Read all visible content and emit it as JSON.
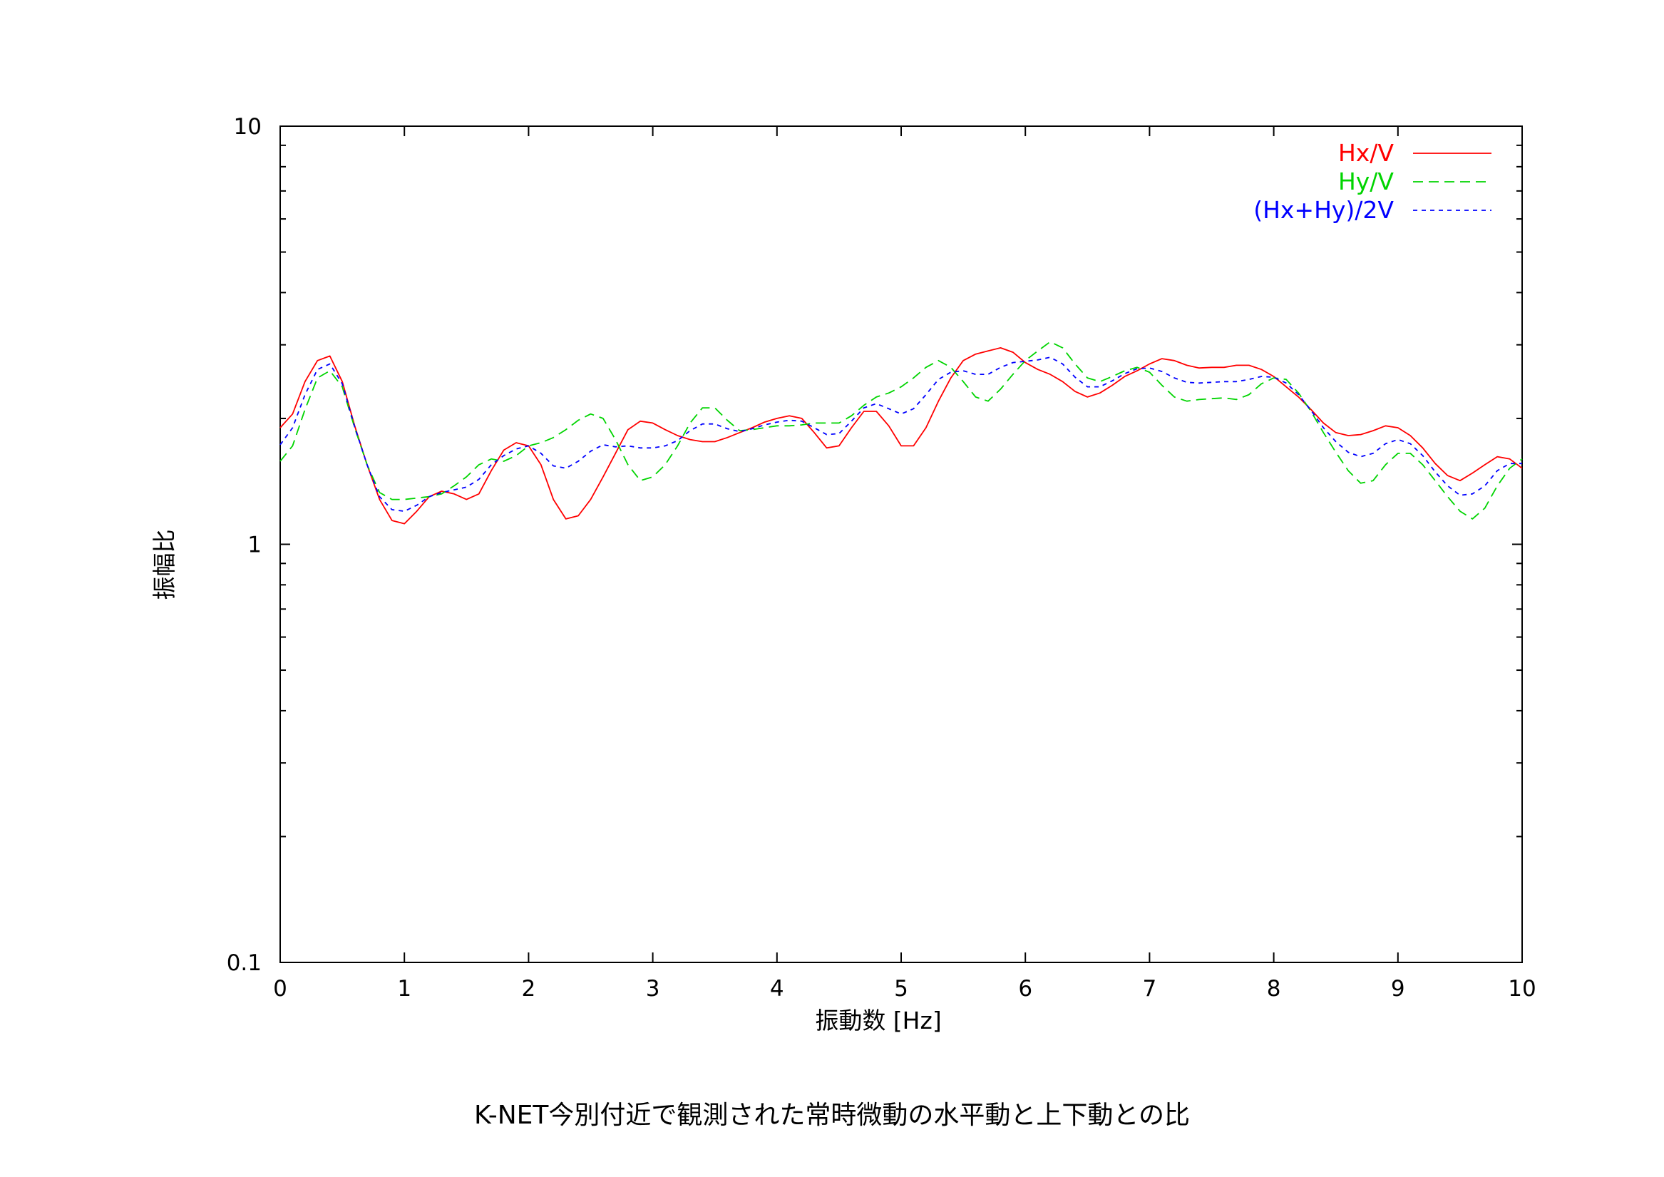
{
  "caption": "K-NET今別付近で観測された常時微動の水平動と上下動との比",
  "chart_data": {
    "type": "line",
    "title": "",
    "xlabel": "振動数 [Hz]",
    "ylabel": "振幅比",
    "xlim": [
      0,
      10
    ],
    "ylim": [
      0.1,
      10
    ],
    "y_scale": "log",
    "x_ticks": [
      0,
      1,
      2,
      3,
      4,
      5,
      6,
      7,
      8,
      9,
      10
    ],
    "x_tick_labels": [
      "0",
      "1",
      "2",
      "3",
      "4",
      "5",
      "6",
      "7",
      "8",
      "9",
      "10"
    ],
    "y_ticks": [
      0.1,
      1,
      10
    ],
    "y_tick_labels": [
      "0.1",
      "1",
      "10"
    ],
    "grid": false,
    "legend_position": "top-right",
    "x": [
      0,
      0.1,
      0.2,
      0.3,
      0.4,
      0.5,
      0.6,
      0.7,
      0.8,
      0.9,
      1.0,
      1.1,
      1.2,
      1.3,
      1.4,
      1.5,
      1.6,
      1.7,
      1.8,
      1.9,
      2.0,
      2.1,
      2.2,
      2.3,
      2.4,
      2.5,
      2.6,
      2.7,
      2.8,
      2.9,
      3.0,
      3.1,
      3.2,
      3.3,
      3.4,
      3.5,
      3.6,
      3.7,
      3.8,
      3.9,
      4.0,
      4.1,
      4.2,
      4.3,
      4.4,
      4.5,
      4.6,
      4.7,
      4.8,
      4.9,
      5.0,
      5.1,
      5.2,
      5.3,
      5.4,
      5.5,
      5.6,
      5.7,
      5.8,
      5.9,
      6.0,
      6.1,
      6.2,
      6.3,
      6.4,
      6.5,
      6.6,
      6.7,
      6.8,
      6.9,
      7.0,
      7.1,
      7.2,
      7.3,
      7.4,
      7.5,
      7.6,
      7.7,
      7.8,
      7.9,
      8.0,
      8.1,
      8.2,
      8.3,
      8.4,
      8.5,
      8.6,
      8.7,
      8.8,
      8.9,
      9.0,
      9.1,
      9.2,
      9.3,
      9.4,
      9.5,
      9.6,
      9.7,
      9.8,
      9.9,
      10.0
    ],
    "series": [
      {
        "name": "Hx/V",
        "color": "#ff0000",
        "dash": "solid",
        "values": [
          1.9,
          2.05,
          2.45,
          2.75,
          2.82,
          2.45,
          1.92,
          1.55,
          1.28,
          1.14,
          1.12,
          1.2,
          1.3,
          1.34,
          1.32,
          1.28,
          1.32,
          1.5,
          1.68,
          1.75,
          1.72,
          1.55,
          1.28,
          1.15,
          1.17,
          1.28,
          1.45,
          1.65,
          1.88,
          1.97,
          1.95,
          1.88,
          1.82,
          1.78,
          1.76,
          1.76,
          1.8,
          1.85,
          1.9,
          1.96,
          2.0,
          2.03,
          2.0,
          1.85,
          1.7,
          1.72,
          1.9,
          2.08,
          2.08,
          1.92,
          1.72,
          1.72,
          1.9,
          2.2,
          2.5,
          2.75,
          2.85,
          2.9,
          2.95,
          2.88,
          2.72,
          2.62,
          2.55,
          2.45,
          2.32,
          2.25,
          2.3,
          2.4,
          2.52,
          2.6,
          2.7,
          2.78,
          2.75,
          2.68,
          2.64,
          2.65,
          2.65,
          2.68,
          2.68,
          2.62,
          2.52,
          2.38,
          2.25,
          2.1,
          1.95,
          1.85,
          1.82,
          1.83,
          1.87,
          1.92,
          1.9,
          1.82,
          1.7,
          1.56,
          1.46,
          1.42,
          1.48,
          1.55,
          1.62,
          1.6,
          1.52
        ]
      },
      {
        "name": "Hy/V",
        "color": "#00d400",
        "dash": "long",
        "values": [
          1.58,
          1.72,
          2.1,
          2.5,
          2.6,
          2.38,
          1.9,
          1.55,
          1.33,
          1.28,
          1.28,
          1.29,
          1.3,
          1.32,
          1.38,
          1.45,
          1.55,
          1.6,
          1.58,
          1.63,
          1.72,
          1.75,
          1.8,
          1.88,
          1.98,
          2.05,
          2.0,
          1.78,
          1.55,
          1.42,
          1.45,
          1.55,
          1.72,
          1.95,
          2.12,
          2.12,
          1.98,
          1.87,
          1.88,
          1.9,
          1.92,
          1.92,
          1.93,
          1.95,
          1.95,
          1.95,
          2.03,
          2.15,
          2.25,
          2.3,
          2.38,
          2.5,
          2.65,
          2.75,
          2.65,
          2.45,
          2.25,
          2.2,
          2.35,
          2.55,
          2.75,
          2.9,
          3.05,
          2.95,
          2.7,
          2.5,
          2.45,
          2.52,
          2.6,
          2.65,
          2.58,
          2.4,
          2.25,
          2.2,
          2.22,
          2.23,
          2.24,
          2.22,
          2.28,
          2.42,
          2.5,
          2.48,
          2.3,
          2.08,
          1.85,
          1.66,
          1.5,
          1.4,
          1.42,
          1.55,
          1.65,
          1.65,
          1.55,
          1.42,
          1.3,
          1.2,
          1.15,
          1.22,
          1.38,
          1.52,
          1.6
        ]
      },
      {
        "name": "(Hx+Hy)/2V",
        "color": "#0000ff",
        "dash": "short",
        "values": [
          1.73,
          1.9,
          2.28,
          2.62,
          2.7,
          2.42,
          1.91,
          1.55,
          1.3,
          1.21,
          1.2,
          1.24,
          1.3,
          1.33,
          1.35,
          1.37,
          1.43,
          1.55,
          1.63,
          1.69,
          1.72,
          1.65,
          1.54,
          1.52,
          1.58,
          1.67,
          1.73,
          1.71,
          1.72,
          1.7,
          1.7,
          1.72,
          1.77,
          1.87,
          1.94,
          1.94,
          1.89,
          1.86,
          1.89,
          1.93,
          1.96,
          1.98,
          1.97,
          1.9,
          1.83,
          1.84,
          1.97,
          2.12,
          2.17,
          2.11,
          2.05,
          2.11,
          2.28,
          2.48,
          2.58,
          2.6,
          2.55,
          2.55,
          2.65,
          2.72,
          2.74,
          2.76,
          2.8,
          2.7,
          2.51,
          2.38,
          2.38,
          2.46,
          2.56,
          2.63,
          2.64,
          2.59,
          2.5,
          2.44,
          2.43,
          2.44,
          2.45,
          2.45,
          2.48,
          2.52,
          2.51,
          2.43,
          2.28,
          2.09,
          1.9,
          1.76,
          1.66,
          1.62,
          1.65,
          1.74,
          1.78,
          1.74,
          1.63,
          1.49,
          1.38,
          1.31,
          1.32,
          1.38,
          1.5,
          1.56,
          1.56
        ]
      }
    ]
  }
}
